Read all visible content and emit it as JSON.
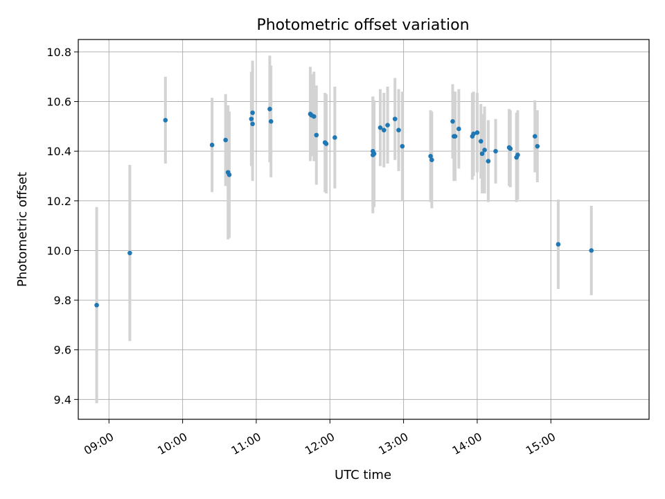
{
  "chart_data": {
    "type": "scatter",
    "title": "Photometric offset variation",
    "xlabel": "UTC time",
    "ylabel": "Photometric offset",
    "x_type": "time",
    "xlim": [
      "08:35",
      "16:20"
    ],
    "ylim": [
      9.32,
      10.85
    ],
    "x_ticks": [
      "09:00",
      "10:00",
      "11:00",
      "12:00",
      "13:00",
      "14:00",
      "15:00"
    ],
    "y_ticks": [
      "9.4",
      "9.6",
      "9.8",
      "10.0",
      "10.2",
      "10.4",
      "10.6",
      "10.8"
    ],
    "grid": true,
    "point_color": "#1f77b4",
    "errorbar_color": "#d3d3d3",
    "series": [
      {
        "x": [
          "08:50",
          "09:17",
          "09:46",
          "10:24",
          "10:35",
          "10:37",
          "10:38",
          "10:56",
          "10:57",
          "10:57",
          "11:11",
          "11:12",
          "11:44",
          "11:45",
          "11:47",
          "11:49",
          "11:56",
          "11:57",
          "12:04",
          "12:35",
          "12:35",
          "12:36",
          "12:41",
          "12:44",
          "12:47",
          "12:53",
          "12:56",
          "12:59",
          "13:22",
          "13:23",
          "13:40",
          "13:41",
          "13:42",
          "13:45",
          "13:56",
          "13:57",
          "14:00",
          "14:03",
          "14:04",
          "14:06",
          "14:09",
          "14:15",
          "14:26",
          "14:27",
          "14:32",
          "14:33",
          "14:47",
          "14:49",
          "15:06",
          "15:33"
        ],
        "y": [
          9.78,
          9.99,
          10.525,
          10.425,
          10.445,
          10.315,
          10.305,
          10.53,
          10.555,
          10.51,
          10.57,
          10.52,
          10.55,
          10.545,
          10.54,
          10.465,
          10.435,
          10.43,
          10.455,
          10.385,
          10.4,
          10.39,
          10.495,
          10.485,
          10.505,
          10.53,
          10.485,
          10.42,
          10.38,
          10.365,
          10.52,
          10.46,
          10.46,
          10.49,
          10.46,
          10.47,
          10.475,
          10.44,
          10.39,
          10.405,
          10.36,
          10.4,
          10.415,
          10.41,
          10.375,
          10.385,
          10.46,
          10.42,
          10.025,
          10.0
        ],
        "yerr": [
          0.395,
          0.355,
          0.175,
          0.19,
          0.185,
          0.27,
          0.255,
          0.19,
          0.21,
          0.23,
          0.215,
          0.225,
          0.19,
          0.165,
          0.18,
          0.2,
          0.2,
          0.2,
          0.205,
          0.235,
          0.22,
          0.215,
          0.155,
          0.15,
          0.155,
          0.165,
          0.165,
          0.22,
          0.185,
          0.195,
          0.15,
          0.18,
          0.18,
          0.16,
          0.175,
          0.17,
          0.16,
          0.15,
          0.16,
          0.175,
          0.165,
          0.13,
          0.155,
          0.155,
          0.18,
          0.18,
          0.145,
          0.145,
          0.18,
          0.18
        ]
      }
    ]
  }
}
